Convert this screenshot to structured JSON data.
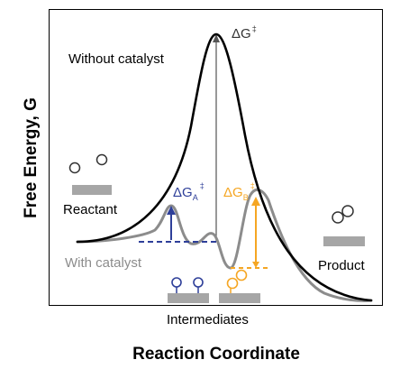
{
  "axes": {
    "ylabel": "Free Energy, G",
    "xlabel": "Reaction Coordinate"
  },
  "curves": {
    "uncatalyzed": {
      "label": "Without catalyst",
      "color": "#000000"
    },
    "catalyzed": {
      "label": "With catalyst",
      "color": "#8c8c8c"
    }
  },
  "labels": {
    "reactant": "Reactant",
    "product": "Product",
    "intermediates": "Intermediates"
  },
  "barriers": {
    "uncatalyzed": {
      "symbol": "ΔG",
      "superscript": "‡",
      "color": "#555555"
    },
    "step_a": {
      "symbol": "ΔG",
      "subscript": "A",
      "superscript": "‡",
      "color": "#2e3f99"
    },
    "step_b": {
      "symbol": "ΔG",
      "subscript": "B",
      "superscript": "‡",
      "color": "#f5a623"
    }
  },
  "colors": {
    "species_bar": "#a6a6a6",
    "molecule_outline": "#333333",
    "intermediate_a": "#2e3f99",
    "intermediate_b": "#f5a623"
  }
}
